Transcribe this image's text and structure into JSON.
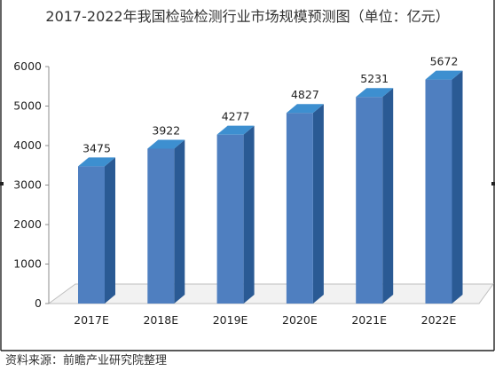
{
  "chart_data": {
    "type": "bar",
    "title": "2017-2022年我国检验检测行业市场规模预测图（单位：亿元）",
    "categories": [
      "2017E",
      "2018E",
      "2019E",
      "2020E",
      "2021E",
      "2022E"
    ],
    "values": [
      3475,
      3922,
      4277,
      4827,
      5231,
      5672
    ],
    "data_labels": [
      "3475",
      "3922",
      "4277",
      "4827",
      "5231",
      "5672"
    ],
    "y_ticks": [
      0,
      1000,
      2000,
      3000,
      4000,
      5000,
      6000
    ],
    "y_tick_labels": [
      "0",
      "1000",
      "2000",
      "3000",
      "4000",
      "5000",
      "6000"
    ],
    "ylim": [
      0,
      6000
    ],
    "xlabel": "",
    "ylabel": "",
    "grid": false,
    "style": "3d-column",
    "colors": {
      "bar_front": "#4f7fc0",
      "bar_side": "#2a5a94",
      "bar_top": "#3d8fd0",
      "floor": "#bfbfbf",
      "axis": "#8c8c8c",
      "frame": "#222222"
    },
    "source": "资料来源：前瞻产业研究院整理"
  }
}
